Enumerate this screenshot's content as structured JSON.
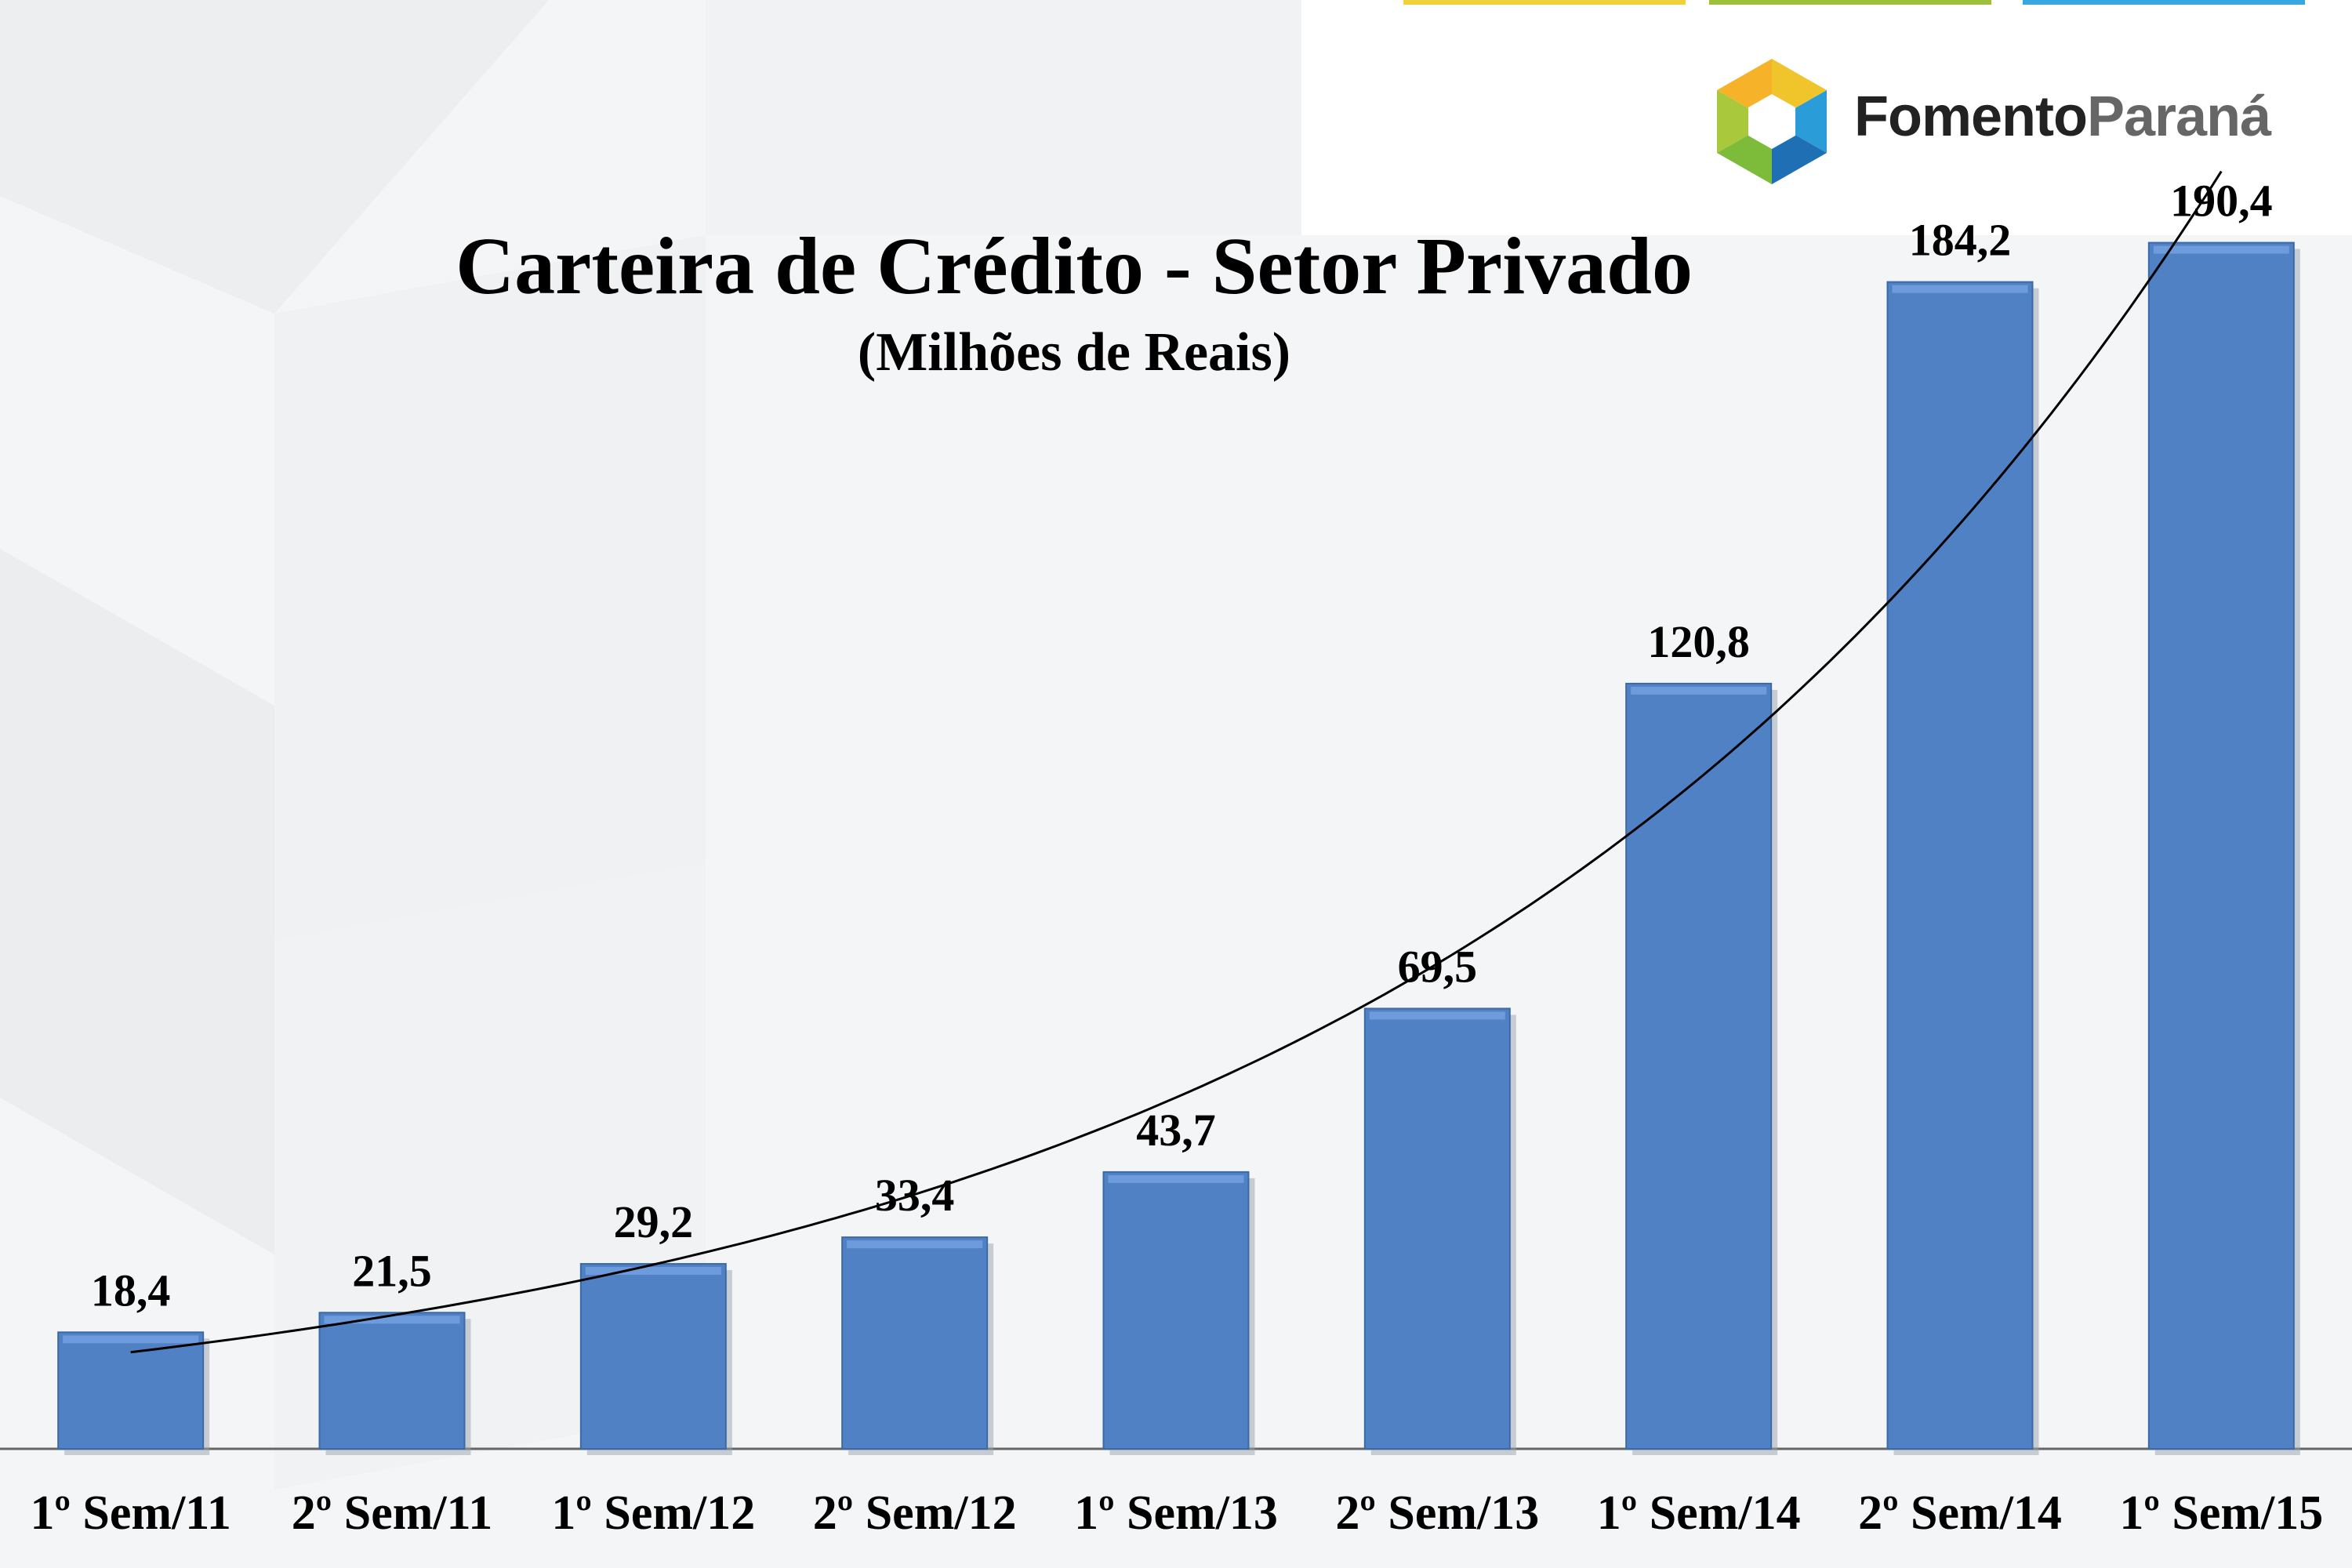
{
  "branding": {
    "logo_text_part1": "Fomento",
    "logo_text_part2": "Paraná"
  },
  "colors": {
    "bar": "#4f81c4",
    "bar_top": "#6d9bdb",
    "trend": "#000000",
    "axis": "#666666"
  },
  "chart_data": {
    "type": "bar",
    "title": "Carteira de Crédito - Setor Privado",
    "subtitle": "(Milhões  de Reais)",
    "categories": [
      "1º Sem/11",
      "2º Sem/11",
      "1º Sem/12",
      "2º Sem/12",
      "1º Sem/13",
      "2º Sem/13",
      "1º Sem/14",
      "2º Sem/14",
      "1º Sem/15"
    ],
    "values": [
      18.4,
      21.5,
      29.2,
      33.4,
      43.7,
      69.5,
      120.8,
      184.2,
      190.4
    ],
    "value_labels": [
      "18,4",
      "21,5",
      "29,2",
      "33,4",
      "43,7",
      "69,5",
      "120,8",
      "184,2",
      "190,4"
    ],
    "trendline": "exponential",
    "ylim": [
      0,
      200
    ],
    "grid": false,
    "legend": "none"
  }
}
